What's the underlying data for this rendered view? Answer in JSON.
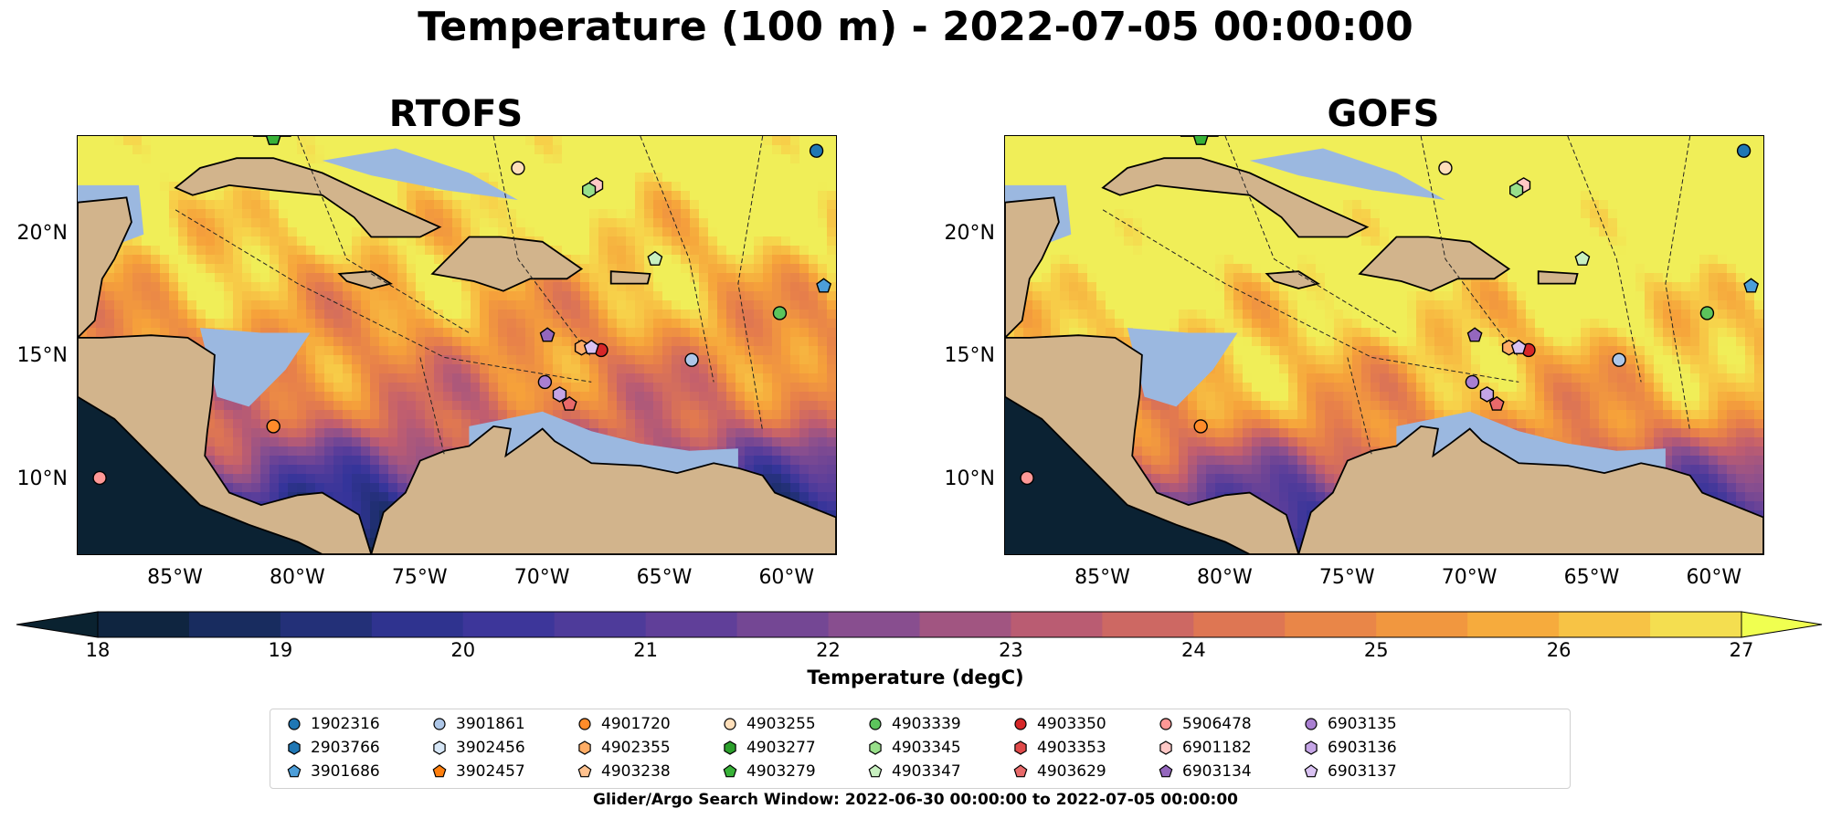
{
  "title": "Temperature (100 m) - 2022-07-05 00:00:00",
  "panels": [
    {
      "title": "RTOFS"
    },
    {
      "title": "GOFS"
    }
  ],
  "map_axes": {
    "lon_range": [
      -89,
      -58
    ],
    "lat_range": [
      7,
      24
    ],
    "lon_ticks": [
      "85°W",
      "80°W",
      "75°W",
      "70°W",
      "65°W",
      "60°W"
    ],
    "lat_ticks": [
      "20°N",
      "15°N",
      "10°N"
    ]
  },
  "colorbar": {
    "label": "Temperature (degC)",
    "ticks": [
      "18",
      "19",
      "20",
      "21",
      "22",
      "23",
      "24",
      "25",
      "26",
      "27"
    ],
    "range": [
      18,
      27
    ],
    "step": 0.5,
    "extend": "both",
    "colormap": "thermal"
  },
  "colors": {
    "land": "#d2b48c",
    "shelf": "#9bb8e0",
    "deep_water": "#0b2233"
  },
  "legend": [
    {
      "id": "1902316",
      "marker": "circle",
      "color": "#1f77b4"
    },
    {
      "id": "2903766",
      "marker": "hexagon",
      "color": "#1f77b4"
    },
    {
      "id": "3901686",
      "marker": "pentagon",
      "color": "#4c9ed9"
    },
    {
      "id": "3901861",
      "marker": "circle",
      "color": "#aec7e8"
    },
    {
      "id": "3902456",
      "marker": "hexagon",
      "color": "#d7e7f7"
    },
    {
      "id": "3902457",
      "marker": "pentagon",
      "color": "#ff7f0e"
    },
    {
      "id": "4901720",
      "marker": "circle",
      "color": "#ff8c2a"
    },
    {
      "id": "4902355",
      "marker": "hexagon",
      "color": "#ffad66"
    },
    {
      "id": "4903238",
      "marker": "pentagon",
      "color": "#ffc28f"
    },
    {
      "id": "4903255",
      "marker": "circle",
      "color": "#ffdfba"
    },
    {
      "id": "4903277",
      "marker": "hexagon",
      "color": "#2ca02c"
    },
    {
      "id": "4903279",
      "marker": "pentagon",
      "color": "#38b238"
    },
    {
      "id": "4903339",
      "marker": "circle",
      "color": "#5cc45c"
    },
    {
      "id": "4903345",
      "marker": "hexagon",
      "color": "#98df8a"
    },
    {
      "id": "4903347",
      "marker": "pentagon",
      "color": "#c8f0c0"
    },
    {
      "id": "4903350",
      "marker": "circle",
      "color": "#d62728"
    },
    {
      "id": "4903353",
      "marker": "hexagon",
      "color": "#e04a4a"
    },
    {
      "id": "4903629",
      "marker": "pentagon",
      "color": "#e86a6a"
    },
    {
      "id": "5906478",
      "marker": "circle",
      "color": "#ff9896"
    },
    {
      "id": "6901182",
      "marker": "hexagon",
      "color": "#ffc8c6"
    },
    {
      "id": "6903134",
      "marker": "pentagon",
      "color": "#9467bd"
    },
    {
      "id": "6903135",
      "marker": "circle",
      "color": "#a97fd1"
    },
    {
      "id": "6903136",
      "marker": "hexagon",
      "color": "#c5a5e6"
    },
    {
      "id": "6903137",
      "marker": "pentagon",
      "color": "#d9c2f2"
    }
  ],
  "floats": [
    {
      "id": "1902316",
      "lon": -58.8,
      "lat": 23.4
    },
    {
      "id": "3901686",
      "lon": -58.5,
      "lat": 17.9
    },
    {
      "id": "4903339",
      "lon": -60.3,
      "lat": 16.8
    },
    {
      "id": "3901861",
      "lon": -63.9,
      "lat": 14.9
    },
    {
      "id": "4903350",
      "lon": -67.6,
      "lat": 15.3
    },
    {
      "id": "4902355",
      "lon": -68.4,
      "lat": 15.4
    },
    {
      "id": "6903137",
      "lon": -68.0,
      "lat": 15.4
    },
    {
      "id": "6903134",
      "lon": -69.8,
      "lat": 15.9
    },
    {
      "id": "6903135",
      "lon": -69.9,
      "lat": 14.0
    },
    {
      "id": "6903136",
      "lon": -69.3,
      "lat": 13.5
    },
    {
      "id": "4903629",
      "lon": -68.9,
      "lat": 13.1
    },
    {
      "id": "4903255",
      "lon": -71.0,
      "lat": 22.7
    },
    {
      "id": "6901182",
      "lon": -67.8,
      "lat": 22.0
    },
    {
      "id": "4903345",
      "lon": -68.1,
      "lat": 21.8
    },
    {
      "id": "4903347",
      "lon": -65.4,
      "lat": 19.0
    },
    {
      "id": "4901720",
      "lon": -81.0,
      "lat": 12.2
    },
    {
      "id": "5906478",
      "lon": -88.1,
      "lat": 10.1
    },
    {
      "id": "4903279",
      "lon": -81.0,
      "lat": 23.9
    }
  ],
  "search_window": "Glider/Argo Search Window: 2022-06-30 00:00:00 to 2022-07-05 00:00:00"
}
